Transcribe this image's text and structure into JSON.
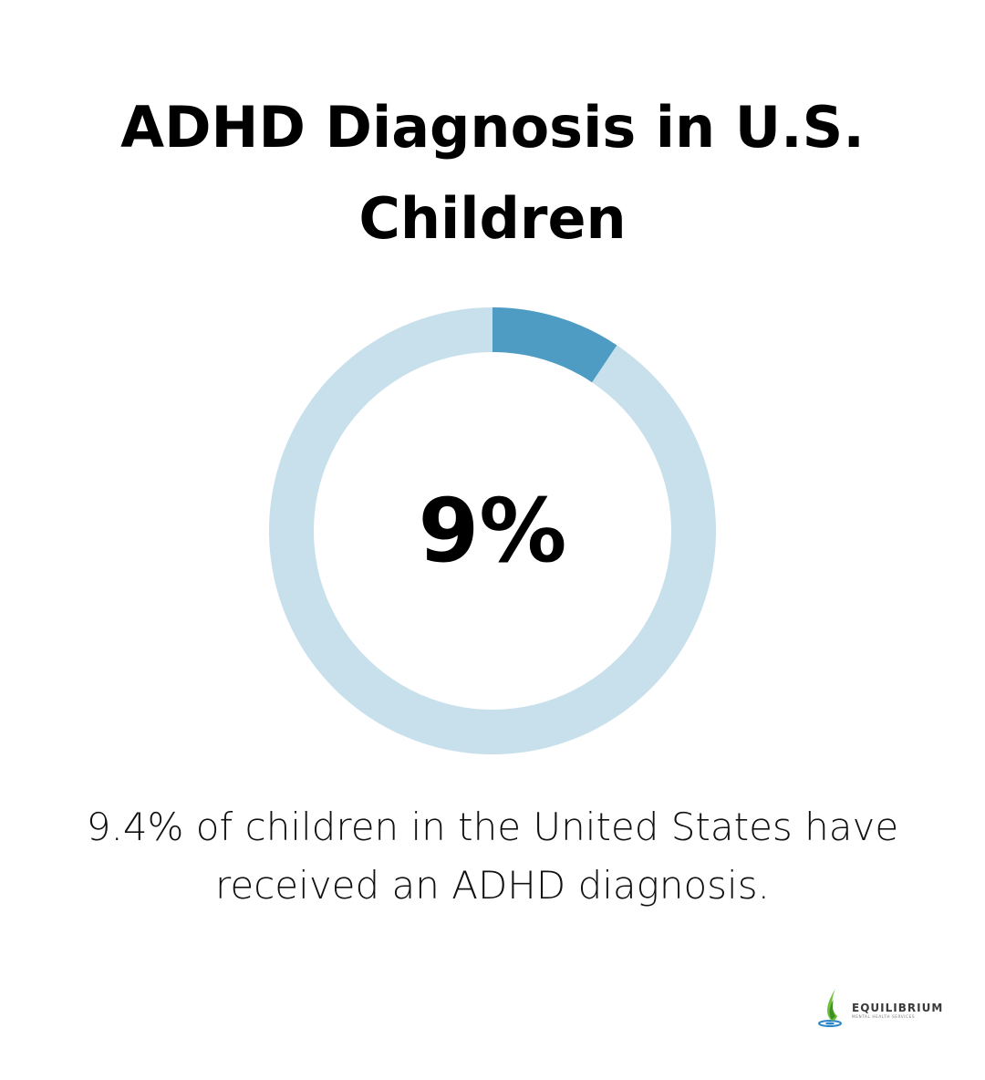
{
  "title": {
    "line1": "ADHD Diagnosis in U.S.",
    "line2": "Children"
  },
  "chart_data": {
    "type": "pie",
    "variant": "donut",
    "center_label": "9%",
    "value_percent": 9.4,
    "slices": [
      {
        "value": 9.4,
        "color": "#4e9cc3"
      },
      {
        "value": 90.6,
        "color": "#c8e0ec"
      }
    ]
  },
  "caption": {
    "line1": "9.4% of children in the United States have",
    "line2": "received an ADHD diagnosis."
  },
  "logo": {
    "brand": "EQUILIBRIUM",
    "tagline": "MENTAL HEALTH SERVICES"
  },
  "colors": {
    "accent": "#4e9cc3",
    "track": "#c8e0ec",
    "text": "#000000"
  }
}
